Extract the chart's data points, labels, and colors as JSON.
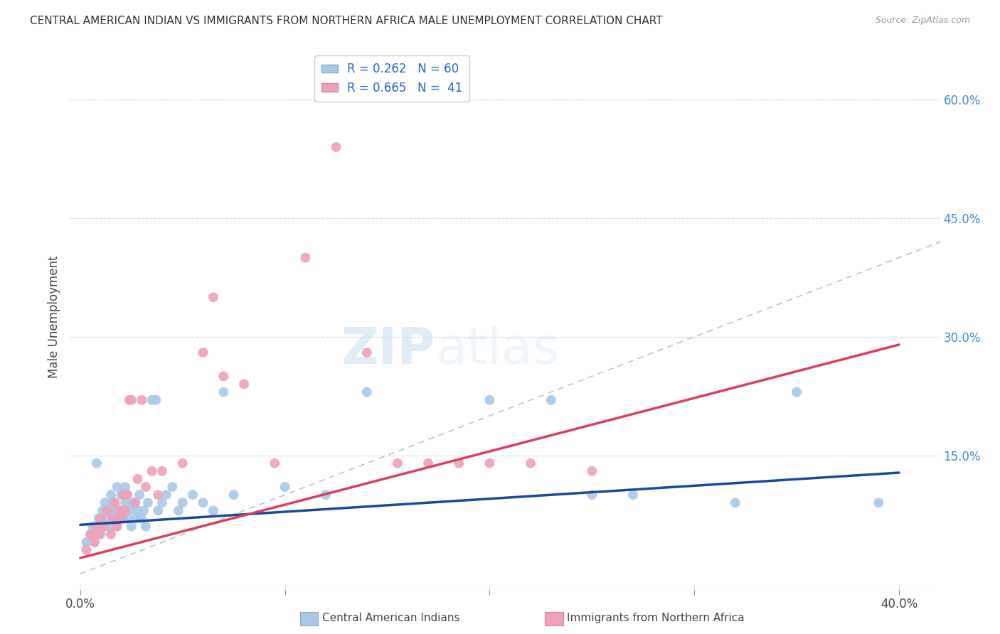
{
  "title": "CENTRAL AMERICAN INDIAN VS IMMIGRANTS FROM NORTHERN AFRICA MALE UNEMPLOYMENT CORRELATION CHART",
  "source": "Source: ZipAtlas.com",
  "ylabel": "Male Unemployment",
  "y_ticks": [
    0.0,
    0.15,
    0.3,
    0.45,
    0.6
  ],
  "y_tick_labels": [
    "",
    "15.0%",
    "30.0%",
    "45.0%",
    "60.0%"
  ],
  "x_lim": [
    -0.005,
    0.42
  ],
  "y_lim": [
    -0.02,
    0.67
  ],
  "legend1_r": "0.262",
  "legend1_n": "60",
  "legend2_r": "0.665",
  "legend2_n": "41",
  "blue_color": "#a8c8e8",
  "pink_color": "#f0a0b8",
  "blue_line_color": "#1a4a9a",
  "pink_line_color": "#d84060",
  "diagonal_color": "#c0c0cc",
  "watermark_zip": "ZIP",
  "watermark_atlas": "atlas",
  "blue_scatter_x": [
    0.003,
    0.005,
    0.006,
    0.007,
    0.008,
    0.009,
    0.01,
    0.011,
    0.012,
    0.012,
    0.013,
    0.014,
    0.015,
    0.015,
    0.016,
    0.016,
    0.017,
    0.018,
    0.018,
    0.019,
    0.02,
    0.02,
    0.021,
    0.022,
    0.022,
    0.023,
    0.023,
    0.024,
    0.025,
    0.026,
    0.027,
    0.028,
    0.029,
    0.03,
    0.031,
    0.032,
    0.033,
    0.035,
    0.037,
    0.038,
    0.04,
    0.042,
    0.045,
    0.048,
    0.05,
    0.055,
    0.06,
    0.065,
    0.07,
    0.075,
    0.1,
    0.12,
    0.14,
    0.2,
    0.23,
    0.25,
    0.27,
    0.32,
    0.35,
    0.39
  ],
  "blue_scatter_y": [
    0.04,
    0.05,
    0.06,
    0.04,
    0.14,
    0.07,
    0.05,
    0.08,
    0.06,
    0.09,
    0.07,
    0.08,
    0.06,
    0.1,
    0.07,
    0.09,
    0.08,
    0.06,
    0.11,
    0.07,
    0.08,
    0.1,
    0.07,
    0.09,
    0.11,
    0.07,
    0.1,
    0.08,
    0.06,
    0.09,
    0.07,
    0.08,
    0.1,
    0.07,
    0.08,
    0.06,
    0.09,
    0.22,
    0.22,
    0.08,
    0.09,
    0.1,
    0.11,
    0.08,
    0.09,
    0.1,
    0.09,
    0.08,
    0.23,
    0.1,
    0.11,
    0.1,
    0.23,
    0.22,
    0.22,
    0.1,
    0.1,
    0.09,
    0.23,
    0.09
  ],
  "pink_scatter_x": [
    0.003,
    0.005,
    0.007,
    0.008,
    0.009,
    0.01,
    0.012,
    0.013,
    0.015,
    0.016,
    0.017,
    0.018,
    0.019,
    0.02,
    0.021,
    0.022,
    0.023,
    0.024,
    0.025,
    0.027,
    0.028,
    0.03,
    0.032,
    0.035,
    0.038,
    0.04,
    0.05,
    0.06,
    0.065,
    0.07,
    0.08,
    0.095,
    0.11,
    0.125,
    0.14,
    0.155,
    0.17,
    0.185,
    0.2,
    0.22,
    0.25
  ],
  "pink_scatter_y": [
    0.03,
    0.05,
    0.04,
    0.06,
    0.05,
    0.07,
    0.06,
    0.08,
    0.05,
    0.07,
    0.09,
    0.06,
    0.08,
    0.07,
    0.1,
    0.08,
    0.1,
    0.22,
    0.22,
    0.09,
    0.12,
    0.22,
    0.11,
    0.13,
    0.1,
    0.13,
    0.14,
    0.28,
    0.35,
    0.25,
    0.24,
    0.14,
    0.4,
    0.54,
    0.28,
    0.14,
    0.14,
    0.14,
    0.14,
    0.14,
    0.13
  ],
  "blue_line_x": [
    0.0,
    0.4
  ],
  "blue_line_y": [
    0.062,
    0.128
  ],
  "pink_line_x": [
    0.0,
    0.4
  ],
  "pink_line_y": [
    0.02,
    0.29
  ]
}
